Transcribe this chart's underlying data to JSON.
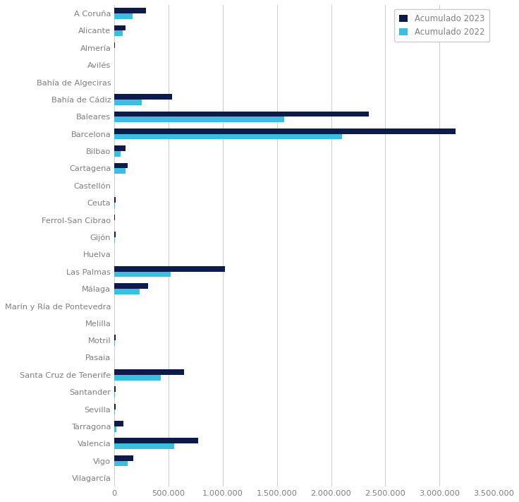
{
  "categories": [
    "A Coruña",
    "Alicante",
    "Almería",
    "Avilés",
    "Bahía de Algeciras",
    "Bahía de Cádiz",
    "Baleares",
    "Barcelona",
    "Bilbao",
    "Cartagena",
    "Castellón",
    "Ceuta",
    "Ferrol-San Cibrao",
    "Gijón",
    "Huelva",
    "Las Palmas",
    "Málaga",
    "Marín y Ría de Pontevedra",
    "Melilla",
    "Motril",
    "Pasaia",
    "Santa Cruz de Tenerife",
    "Santander",
    "Sevilla",
    "Tarragona",
    "Valencia",
    "Vigo",
    "Vilagarcía"
  ],
  "values_2023": [
    290000,
    100000,
    5000,
    0,
    0,
    530000,
    2350000,
    3150000,
    100000,
    120000,
    0,
    10000,
    5000,
    10000,
    0,
    1020000,
    310000,
    0,
    0,
    15000,
    0,
    640000,
    10000,
    10000,
    85000,
    770000,
    175000,
    0
  ],
  "values_2022": [
    170000,
    80000,
    0,
    0,
    0,
    250000,
    1570000,
    2100000,
    60000,
    100000,
    0,
    5000,
    0,
    5000,
    0,
    520000,
    230000,
    0,
    0,
    5000,
    0,
    430000,
    5000,
    5000,
    20000,
    550000,
    120000,
    0
  ],
  "color_2023": "#0d1b4b",
  "color_2022": "#3bbfdf",
  "legend_2023": "Acumulado 2023",
  "legend_2022": "Acumulado 2022",
  "xlim": [
    0,
    3500000
  ],
  "xticks": [
    0,
    500000,
    1000000,
    1500000,
    2000000,
    2500000,
    3000000,
    3500000
  ],
  "xtick_labels": [
    "0",
    "500.000",
    "1.000.000",
    "1.500.000",
    "2.000.000",
    "2.500.000",
    "3.000.000",
    "3.500.000"
  ],
  "background_color": "#ffffff",
  "label_color": "#808080",
  "grid_color": "#d0d0d0"
}
